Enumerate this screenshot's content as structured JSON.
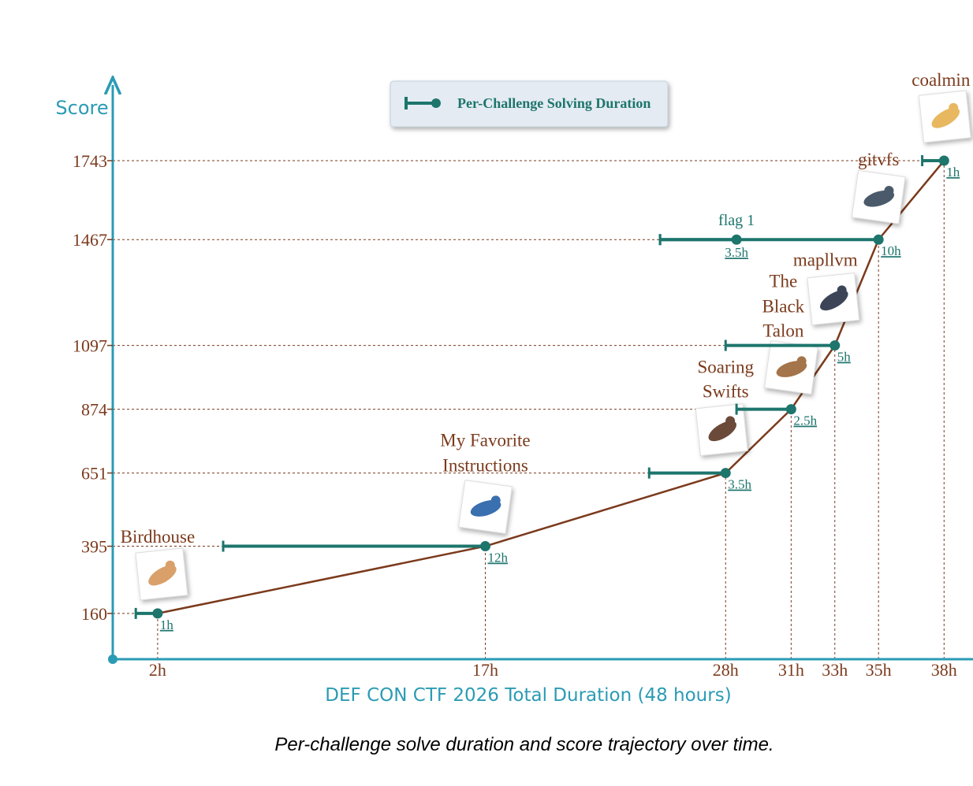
{
  "chart_data": {
    "type": "line",
    "y_label": "Score",
    "x_label": "DEF CON CTF 2026 Total Duration (48 hours)",
    "caption": "Per-challenge solve duration and score trajectory over time.",
    "legend": "Per-Challenge Solving Duration",
    "line_color": "#7b3a1c",
    "duration_color": "#1d756c",
    "x": [
      2,
      17,
      28,
      31,
      33,
      35,
      38
    ],
    "values": [
      160,
      395,
      651,
      874,
      1097,
      1467,
      1743
    ],
    "labels": [
      [
        "Birdhouse"
      ],
      [
        "My Favorite",
        "Instructions"
      ],
      [
        "Soaring",
        "Swifts"
      ],
      [
        "The",
        "Black",
        "Talon"
      ],
      [
        "mapllvm"
      ],
      [
        "gitvfs"
      ],
      [
        "coalmin"
      ]
    ],
    "durations": [
      1,
      12,
      3.5,
      2.5,
      5,
      10,
      1
    ],
    "duration_labels": [
      "1h",
      "12h",
      "3.5h",
      "2.5h",
      "5h",
      "10h",
      "1h"
    ],
    "extra_point": {
      "label": "flag 1",
      "x": 28.5,
      "y": 1467,
      "duration": 3.5,
      "duration_label": "3.5h"
    },
    "xlim": [
      0,
      39
    ],
    "ylim": [
      0,
      1900
    ],
    "xticks": [
      {
        "value": 2,
        "label": "2h"
      },
      {
        "value": 17,
        "label": "17h"
      },
      {
        "value": 28,
        "label": "28h"
      },
      {
        "value": 31,
        "label": "31h"
      },
      {
        "value": 33,
        "label": "33h"
      },
      {
        "value": 35,
        "label": "35h"
      },
      {
        "value": 38,
        "label": "38h"
      }
    ],
    "yticks": [
      160,
      395,
      651,
      874,
      1097,
      1467,
      1743
    ]
  }
}
